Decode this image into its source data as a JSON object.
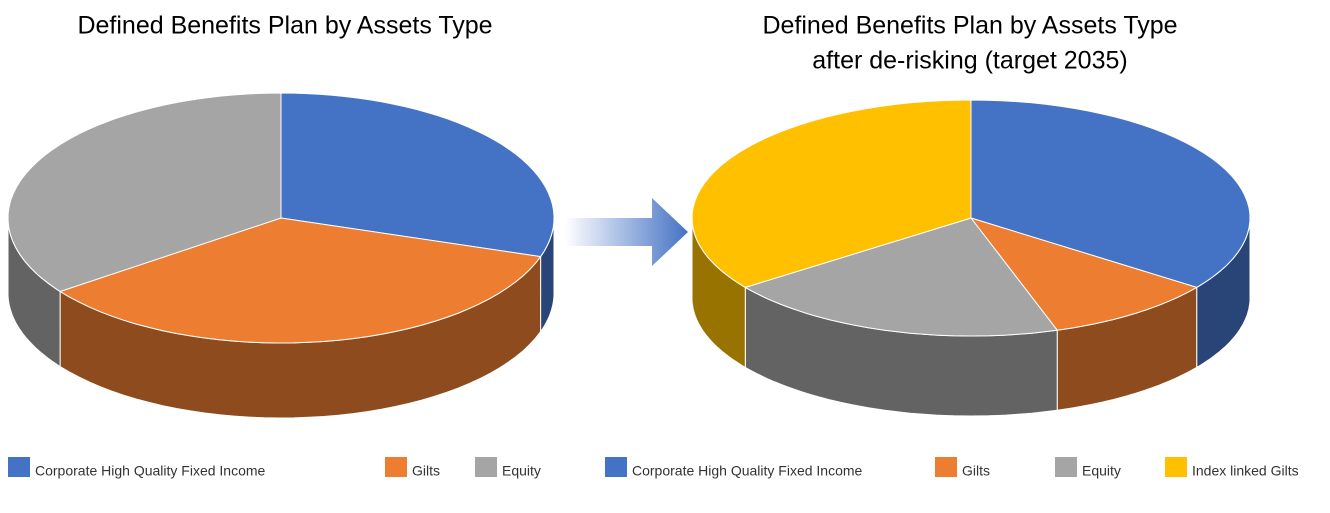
{
  "chart_data": [
    {
      "type": "pie3d",
      "title": "Defined Benefits Plan by Assets Type",
      "categories": [
        "Corporate High Quality Fixed Income",
        "Gilts",
        "Equity"
      ],
      "values": [
        30,
        35,
        35
      ],
      "colors": [
        "#4472c4",
        "#ed7d31",
        "#a5a5a5"
      ]
    },
    {
      "type": "pie3d",
      "title": "Defined Benefits Plan by Assets Type",
      "subtitle": "after de-risking (target 2035)",
      "categories": [
        "Corporate High Quality Fixed Income",
        "Gilts",
        "Equity",
        "Index linked Gilts"
      ],
      "values": [
        35,
        10,
        20,
        35
      ],
      "colors": [
        "#4472c4",
        "#ed7d31",
        "#a5a5a5",
        "#ffc000"
      ]
    }
  ]
}
